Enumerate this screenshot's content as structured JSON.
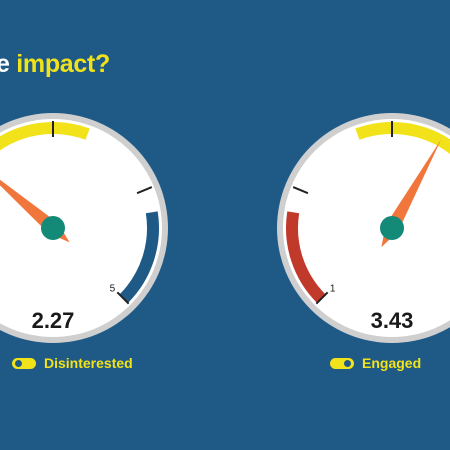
{
  "header": {
    "title_prefix": "e ",
    "title_highlight": "impact?"
  },
  "colors": {
    "background": "#1f5a86",
    "accent_yellow": "#f2e21a",
    "blue_band": "#1f5a86",
    "red_band": "#c0392b",
    "needle": "#f0763c",
    "hub": "#138a78"
  },
  "chart_data": [
    {
      "type": "gauge",
      "value": 2.27,
      "value_label": "2.27",
      "range": [
        1,
        5
      ],
      "visible_tick_label": "5",
      "bands": [
        {
          "color": "#f2e21a",
          "from": 1,
          "to": 3.3
        },
        {
          "color": "#1f5a86",
          "from": 4.2,
          "to": 5
        }
      ],
      "legend": "Disinterested"
    },
    {
      "type": "gauge",
      "value": 3.43,
      "value_label": "3.43",
      "range": [
        1,
        5
      ],
      "visible_tick_label": "1",
      "bands": [
        {
          "color": "#c0392b",
          "from": 1,
          "to": 1.8
        },
        {
          "color": "#f2e21a",
          "from": 2.7,
          "to": 5
        }
      ],
      "legend": "Engaged"
    }
  ]
}
